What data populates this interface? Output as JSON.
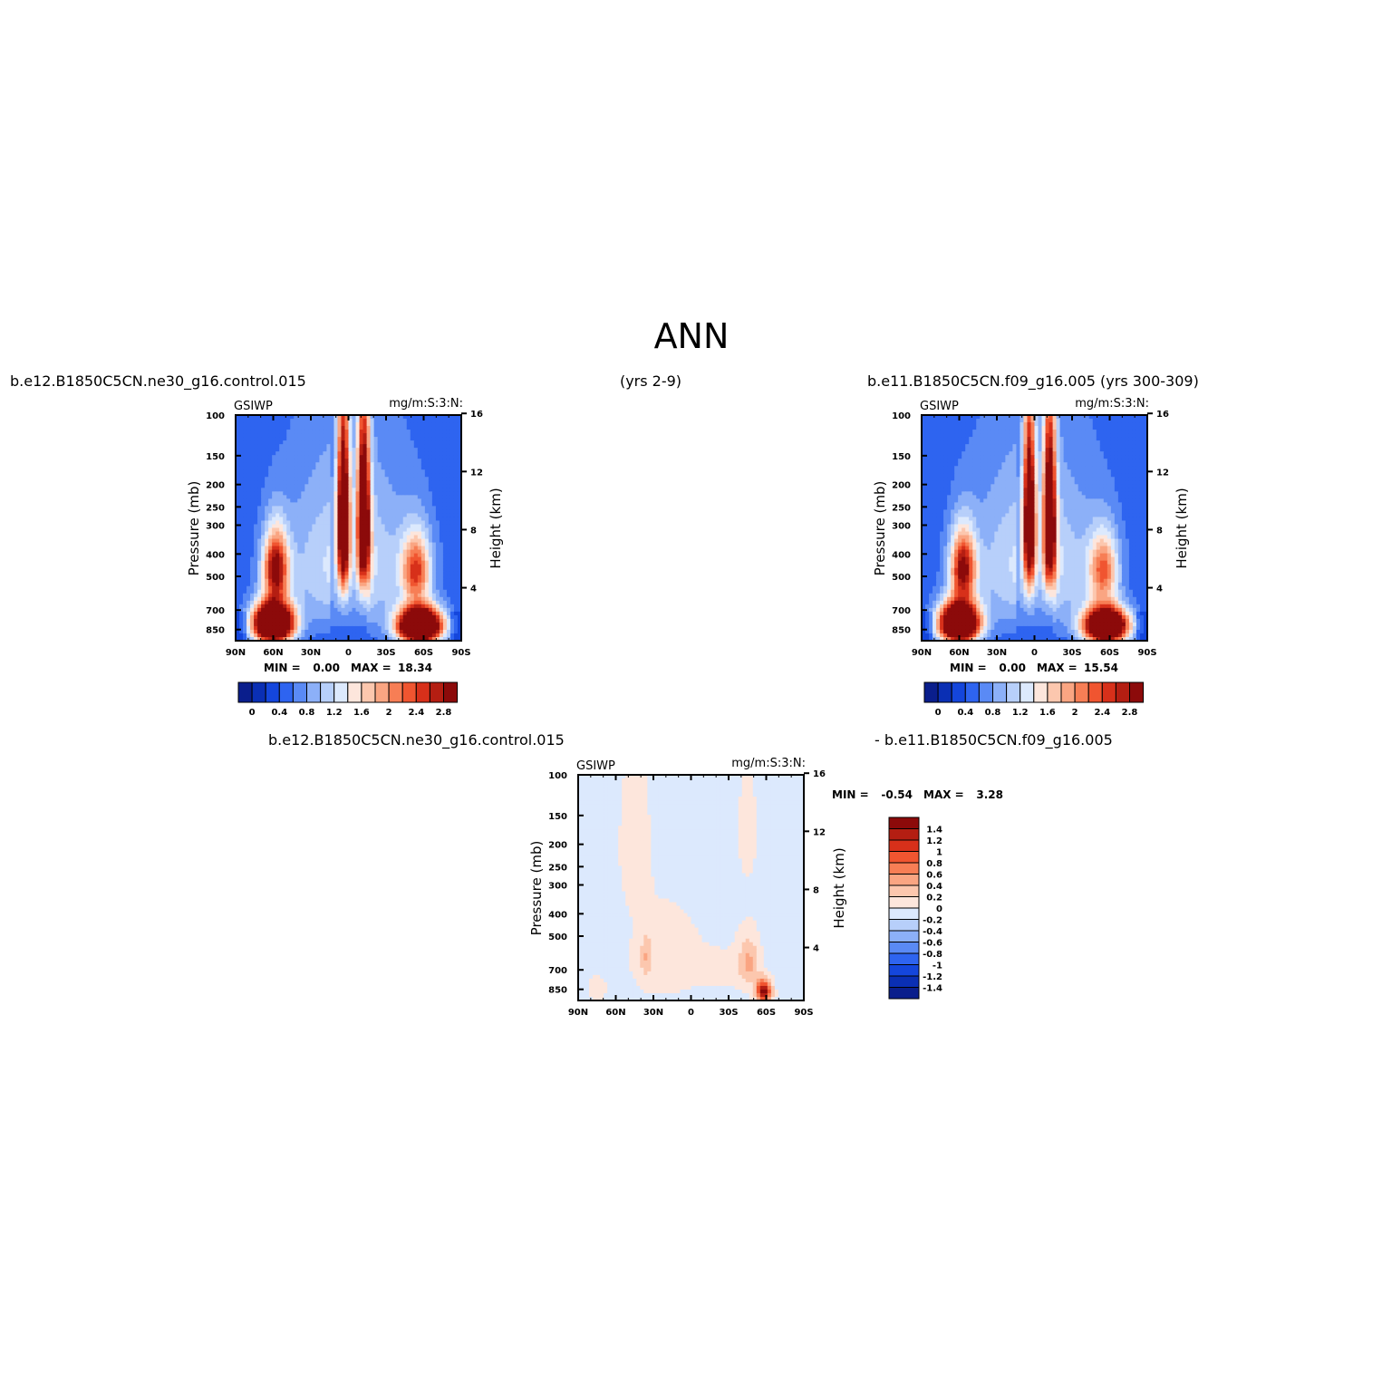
{
  "figure": {
    "title": "ANN",
    "run1_label": "b.e12.B1850C5CN.ne30_g16.control.015",
    "run1_years": "(yrs 2-9)",
    "run2_label": "b.e11.B1850C5CN.f09_g16.005 (yrs 300-309)",
    "diff_label_left": "b.e12.B1850C5CN.ne30_g16.control.015",
    "diff_label_right": "- b.e11.B1850C5CN.f09_g16.005"
  },
  "chart_data": [
    {
      "type": "heatmap",
      "id": "panel1",
      "variable": "GSIWP",
      "units": "mg/m:S:3:N:",
      "ylabel": "Pressure (mb)",
      "y2label": "Height (km)",
      "x_ticks": [
        "90N",
        "60N",
        "30N",
        "0",
        "30S",
        "60S",
        "90S"
      ],
      "y_ticks": [
        100,
        150,
        200,
        250,
        300,
        400,
        500,
        700,
        850
      ],
      "y2_ticks": [
        4,
        8,
        12,
        16
      ],
      "ylim": [
        100,
        950
      ],
      "min_label": "MIN =",
      "min_value": "0.00",
      "max_label": "MAX =",
      "max_value": "18.34",
      "colorbar_labels": [
        "0",
        "0.4",
        "0.8",
        "1.2",
        "1.6",
        "2",
        "2.4",
        "2.8"
      ],
      "features": [
        {
          "lat": -12,
          "p": 290,
          "amp": 3.4,
          "sx": 3.5,
          "sy": 170
        },
        {
          "lat": 4,
          "p": 290,
          "amp": 3.4,
          "sx": 3.5,
          "sy": 170
        },
        {
          "lat": 58,
          "p": 460,
          "amp": 2.4,
          "sx": 7,
          "sy": 110
        },
        {
          "lat": 60,
          "p": 800,
          "amp": 5.0,
          "sx": 11,
          "sy": 110
        },
        {
          "lat": -54,
          "p": 470,
          "amp": 1.8,
          "sx": 8,
          "sy": 110
        },
        {
          "lat": -57,
          "p": 820,
          "amp": 5.0,
          "sx": 12,
          "sy": 100
        }
      ]
    },
    {
      "type": "heatmap",
      "id": "panel2",
      "variable": "GSIWP",
      "units": "mg/m:S:3:N:",
      "ylabel": "Pressure (mb)",
      "y2label": "Height (km)",
      "x_ticks": [
        "90N",
        "60N",
        "30N",
        "0",
        "30S",
        "60S",
        "90S"
      ],
      "y_ticks": [
        100,
        150,
        200,
        250,
        300,
        400,
        500,
        700,
        850
      ],
      "y2_ticks": [
        4,
        8,
        12,
        16
      ],
      "ylim": [
        100,
        950
      ],
      "min_label": "MIN =",
      "min_value": "0.00",
      "max_label": "MAX =",
      "max_value": "15.54",
      "colorbar_labels": [
        "0",
        "0.4",
        "0.8",
        "1.2",
        "1.6",
        "2",
        "2.4",
        "2.8"
      ],
      "features": [
        {
          "lat": -12,
          "p": 290,
          "amp": 3.3,
          "sx": 3.5,
          "sy": 170
        },
        {
          "lat": 4,
          "p": 290,
          "amp": 3.2,
          "sx": 3.5,
          "sy": 170
        },
        {
          "lat": 57,
          "p": 460,
          "amp": 2.3,
          "sx": 7,
          "sy": 110
        },
        {
          "lat": 60,
          "p": 800,
          "amp": 4.8,
          "sx": 11,
          "sy": 110
        },
        {
          "lat": -55,
          "p": 470,
          "amp": 1.6,
          "sx": 8,
          "sy": 110
        },
        {
          "lat": -57,
          "p": 820,
          "amp": 4.7,
          "sx": 12,
          "sy": 100
        }
      ]
    },
    {
      "type": "heatmap",
      "id": "diff",
      "variable": "GSIWP",
      "units": "mg/m:S:3:N:",
      "ylabel": "Pressure (mb)",
      "y2label": "Height (km)",
      "x_ticks": [
        "90N",
        "60N",
        "30N",
        "0",
        "30S",
        "60S",
        "90S"
      ],
      "y_ticks": [
        100,
        150,
        200,
        250,
        300,
        400,
        500,
        700,
        850
      ],
      "y2_ticks": [
        4,
        8,
        12,
        16
      ],
      "ylim": [
        100,
        950
      ],
      "min_label": "MIN =",
      "min_value": "-0.54",
      "max_label": "MAX =",
      "max_value": "3.28",
      "colorbar_labels": [
        "1.4",
        "1.2",
        "1",
        "0.8",
        "0.6",
        "0.4",
        "0.2",
        "0",
        "-0.2",
        "-0.4",
        "-0.6",
        "-0.8",
        "-1",
        "-1.2",
        "-1.4"
      ]
    }
  ],
  "colors": {
    "abs_scale": [
      "#0a1e8c",
      "#0a2fb4",
      "#1446dc",
      "#2e64f0",
      "#5a8af5",
      "#8cb0f8",
      "#b7cffa",
      "#dce9fd",
      "#fde6dc",
      "#fcc7ae",
      "#faa582",
      "#f77e55",
      "#f05530",
      "#d7301a",
      "#b41e12",
      "#8c0a0a"
    ],
    "diff_scale": [
      "#8c0a0a",
      "#b41e12",
      "#d7301a",
      "#f05530",
      "#f77e55",
      "#faa582",
      "#fcc7ae",
      "#fde6dc",
      "#dce9fd",
      "#b7cffa",
      "#8cb0f8",
      "#5a8af5",
      "#2e64f0",
      "#1446dc",
      "#0a2fb4",
      "#0a1e8c"
    ]
  }
}
